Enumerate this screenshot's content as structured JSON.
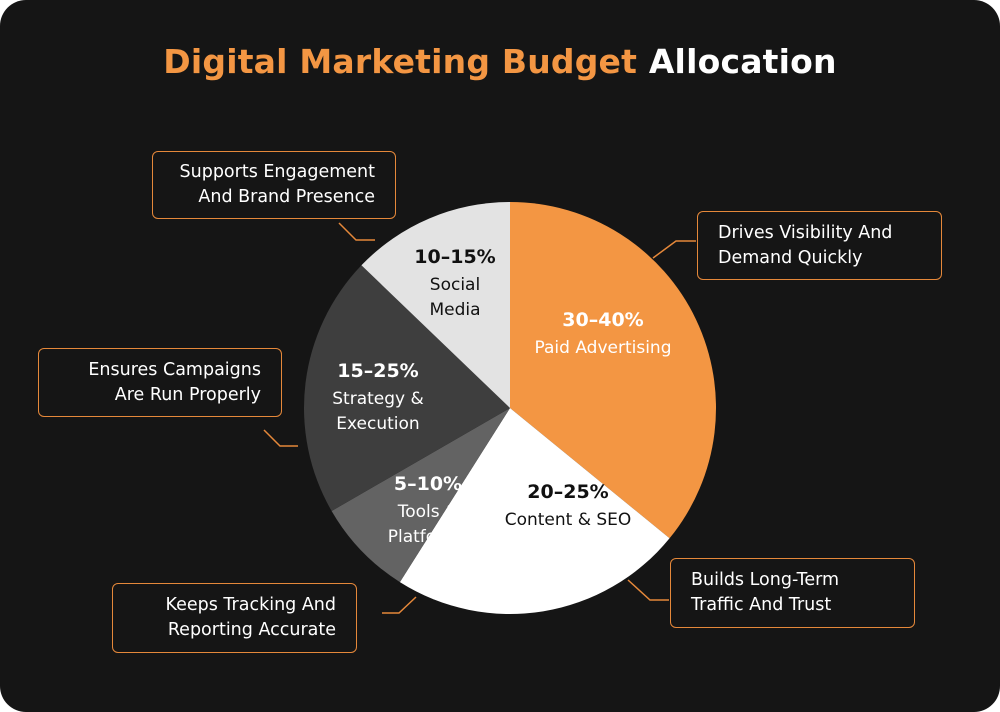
{
  "title": {
    "accent": "Digital Marketing Budget",
    "plain": "Allocation"
  },
  "colors": {
    "background": "#151515",
    "accent": "#f39643",
    "callout_border": "#e5883a"
  },
  "chart_data": {
    "type": "pie",
    "title": "Digital Marketing Budget Allocation",
    "slices": [
      {
        "name": "Paid Advertising",
        "range": "30–40%",
        "label_lines": [
          "Paid Advertising"
        ],
        "value": 35,
        "color": "#f39643",
        "text_color": "#ffffff",
        "callout": [
          "Drives Visibility And",
          "Demand Quickly"
        ]
      },
      {
        "name": "Content & SEO",
        "range": "20–25%",
        "label_lines": [
          "Content & SEO"
        ],
        "value": 22.5,
        "color": "#ffffff",
        "text_color": "#111111",
        "callout": [
          "Builds Long-Term",
          "Traffic And Trust"
        ]
      },
      {
        "name": "Tools & Platforms",
        "range": "5–10%",
        "label_lines": [
          "Tools &",
          "Platforms"
        ],
        "value": 7.5,
        "color": "#636363",
        "text_color": "#ffffff",
        "callout": [
          "Keeps Tracking And",
          "Reporting Accurate"
        ]
      },
      {
        "name": "Strategy & Execution",
        "range": "15–25%",
        "label_lines": [
          "Strategy &",
          "Execution"
        ],
        "value": 20,
        "color": "#3e3e3e",
        "text_color": "#ffffff",
        "callout": [
          "Ensures Campaigns",
          "Are Run Properly"
        ]
      },
      {
        "name": "Social Media",
        "range": "10–15%",
        "label_lines": [
          "Social",
          "Media"
        ],
        "value": 12.5,
        "color": "#e3e3e3",
        "text_color": "#111111",
        "callout": [
          "Supports Engagement",
          "And Brand Presence"
        ]
      }
    ]
  }
}
